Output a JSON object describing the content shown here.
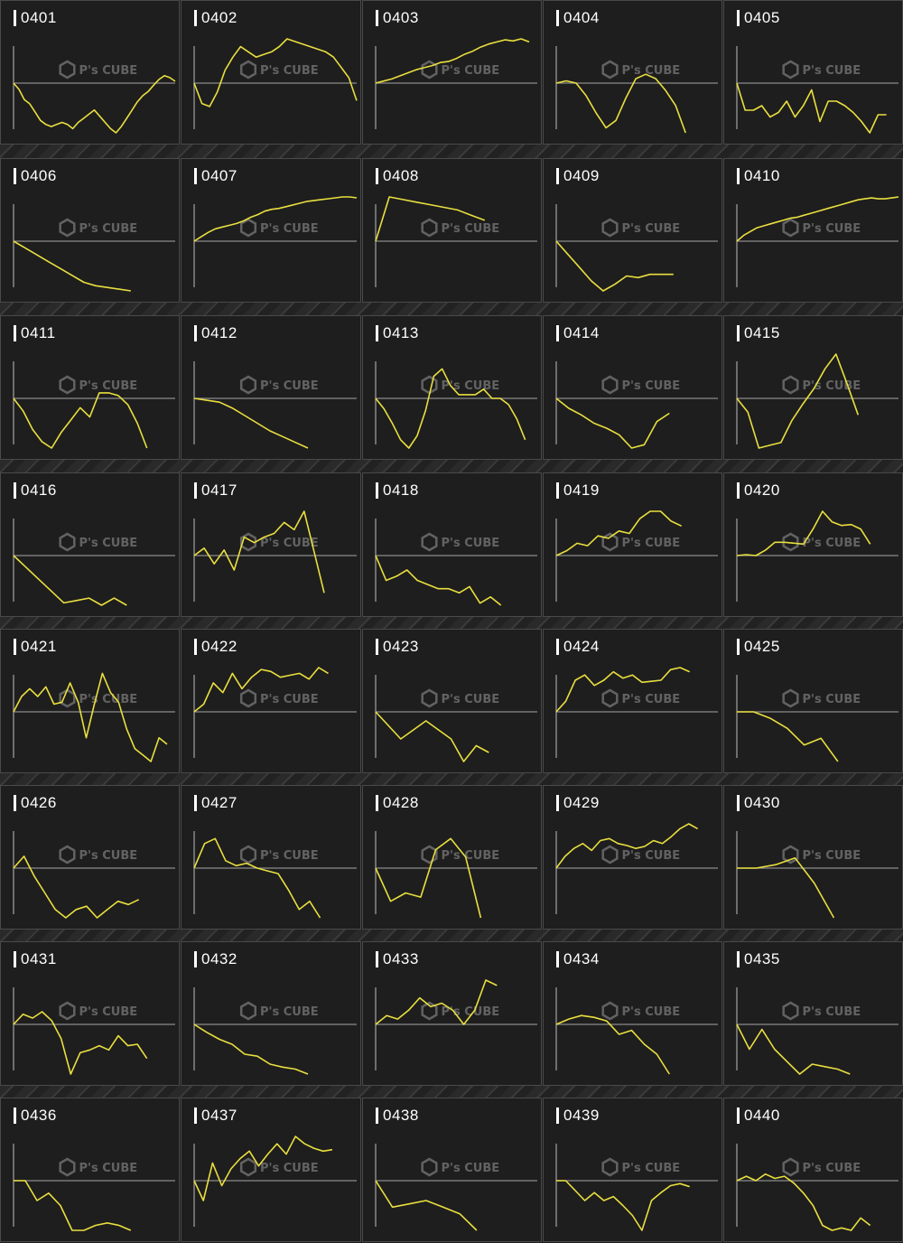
{
  "colors": {
    "background": "#1d1d1d",
    "panel": "#1e1e1e",
    "line": "#e9df3f",
    "baseline": "#8c8c8c",
    "label": "#ffffff"
  },
  "watermark": {
    "brand": "P's CUBE",
    "icon": "cube-logo-icon"
  },
  "chart_data": [
    {
      "type": "line",
      "label": "0401",
      "values": [
        0,
        -3,
        -8,
        -10,
        -14,
        -18,
        -20,
        -21,
        -20,
        -19,
        -20,
        -22,
        -19,
        -17,
        -15,
        -13,
        -16,
        -19,
        -22,
        -24,
        -21,
        -17,
        -13,
        -9,
        -6,
        -4,
        -1,
        2,
        4,
        3,
        1
      ]
    },
    {
      "type": "line",
      "label": "0402",
      "values": [
        0,
        -7,
        -8,
        -3,
        5,
        10,
        14,
        12,
        10,
        11,
        12,
        14,
        17,
        16,
        15,
        14,
        13,
        12,
        10,
        6,
        2,
        -6
      ]
    },
    {
      "type": "line",
      "label": "0403",
      "values": [
        0,
        2,
        4,
        7,
        10,
        13,
        15,
        17,
        20,
        21,
        24,
        28,
        31,
        35,
        38,
        40,
        42,
        41,
        43,
        40
      ]
    },
    {
      "type": "line",
      "label": "0404",
      "values": [
        0,
        1,
        0,
        -5,
        -12,
        -18,
        -15,
        -6,
        2,
        4,
        2,
        -3,
        -9,
        -20
      ]
    },
    {
      "type": "line",
      "label": "0405",
      "values": [
        0,
        -12,
        -12,
        -10,
        -15,
        -13,
        -8,
        -15,
        -10,
        -3,
        -17,
        -8,
        -8,
        -10,
        -13,
        -17,
        -22,
        -14,
        -14
      ]
    },
    {
      "type": "line",
      "label": "0406",
      "values": [
        0,
        -4,
        -8,
        -12,
        -16,
        -20,
        -24,
        -26,
        -27,
        -28,
        -29
      ]
    },
    {
      "type": "line",
      "label": "0407",
      "values": [
        0,
        5,
        10,
        14,
        16,
        18,
        20,
        23,
        27,
        30,
        34,
        36,
        37,
        39,
        41,
        43,
        45,
        46,
        47,
        48,
        49,
        50,
        50,
        49
      ]
    },
    {
      "type": "line",
      "label": "0408",
      "values": [
        0,
        17,
        16,
        15,
        14,
        13,
        12,
        10,
        8
      ]
    },
    {
      "type": "line",
      "label": "0409",
      "values": [
        0,
        -8,
        -16,
        -24,
        -30,
        -26,
        -21,
        -22,
        -20,
        -20,
        -20
      ]
    },
    {
      "type": "line",
      "label": "0410",
      "values": [
        0,
        6,
        10,
        14,
        16,
        18,
        20,
        22,
        24,
        25,
        27,
        29,
        31,
        33,
        35,
        37,
        39,
        41,
        43,
        44,
        45,
        44,
        44,
        45,
        46
      ]
    },
    {
      "type": "line",
      "label": "0411",
      "values": [
        0,
        -4,
        -10,
        -14,
        -16,
        -11,
        -7,
        -3,
        -6,
        2,
        2,
        1,
        -2,
        -8,
        -16
      ]
    },
    {
      "type": "line",
      "label": "0412",
      "values": [
        0,
        -1,
        -2,
        -5,
        -9,
        -13,
        -17,
        -20,
        -23,
        -26
      ]
    },
    {
      "type": "line",
      "label": "0413",
      "values": [
        0,
        -5,
        -12,
        -20,
        -24,
        -18,
        -6,
        12,
        16,
        7,
        2,
        2,
        2,
        5,
        0,
        0,
        -3,
        -10,
        -20
      ]
    },
    {
      "type": "line",
      "label": "0414",
      "values": [
        0,
        -6,
        -10,
        -15,
        -18,
        -22,
        -30,
        -28,
        -14,
        -9
      ]
    },
    {
      "type": "line",
      "label": "0415",
      "values": [
        0,
        -5,
        -18,
        -17,
        -16,
        -8,
        -2,
        4,
        12,
        18,
        6,
        -6
      ]
    },
    {
      "type": "line",
      "label": "0416",
      "values": [
        0,
        -5,
        -10,
        -15,
        -20,
        -19,
        -18,
        -21,
        -18,
        -21
      ]
    },
    {
      "type": "line",
      "label": "0417",
      "values": [
        0,
        4,
        -4,
        3,
        -7,
        10,
        7,
        10,
        12,
        18,
        14,
        24,
        2,
        -18
      ]
    },
    {
      "type": "line",
      "label": "0418",
      "values": [
        0,
        -12,
        -10,
        -7,
        -12,
        -14,
        -16,
        -16,
        -18,
        -15,
        -23,
        -20,
        -24
      ]
    },
    {
      "type": "line",
      "label": "0419",
      "values": [
        0,
        2,
        5,
        4,
        8,
        7,
        10,
        9,
        15,
        18,
        18,
        14,
        12
      ]
    },
    {
      "type": "line",
      "label": "0420",
      "values": [
        0,
        1,
        0,
        6,
        15,
        15,
        14,
        13,
        30,
        50,
        38,
        34,
        35,
        30,
        13
      ]
    },
    {
      "type": "line",
      "label": "0421",
      "values": [
        0,
        8,
        12,
        8,
        13,
        4,
        5,
        15,
        5,
        -12,
        4,
        20,
        10,
        5,
        -8,
        -17,
        -20,
        -23,
        -12,
        -15
      ]
    },
    {
      "type": "line",
      "label": "0422",
      "values": [
        0,
        4,
        15,
        10,
        20,
        12,
        18,
        22,
        21,
        18,
        19,
        20,
        17,
        23,
        20
      ]
    },
    {
      "type": "line",
      "label": "0423",
      "values": [
        0,
        -6,
        -12,
        -8,
        -4,
        -8,
        -12,
        -22,
        -15,
        -18
      ]
    },
    {
      "type": "line",
      "label": "0424",
      "values": [
        0,
        10,
        30,
        35,
        25,
        30,
        38,
        32,
        35,
        28,
        29,
        30,
        40,
        42,
        38
      ]
    },
    {
      "type": "line",
      "label": "0425",
      "values": [
        0,
        0,
        -2,
        -5,
        -10,
        -8,
        -15
      ]
    },
    {
      "type": "line",
      "label": "0426",
      "values": [
        0,
        8,
        -5,
        -15,
        -25,
        -30,
        -25,
        -23,
        -30,
        -25,
        -20,
        -22,
        -19
      ]
    },
    {
      "type": "line",
      "label": "0427",
      "values": [
        0,
        10,
        12,
        3,
        1,
        2,
        0,
        -1,
        -2,
        -8,
        -15,
        -12,
        -18
      ]
    },
    {
      "type": "line",
      "label": "0428",
      "values": [
        0,
        -8,
        -6,
        -7,
        5,
        8,
        3,
        -12
      ]
    },
    {
      "type": "line",
      "label": "0429",
      "values": [
        0,
        12,
        20,
        25,
        18,
        28,
        30,
        25,
        23,
        20,
        22,
        28,
        25,
        32,
        40,
        45,
        40
      ]
    },
    {
      "type": "line",
      "label": "0430",
      "values": [
        0,
        0,
        1,
        3,
        -4,
        -13
      ]
    },
    {
      "type": "line",
      "label": "0431",
      "values": [
        0,
        8,
        5,
        10,
        3,
        -10,
        -35,
        -20,
        -18,
        -15,
        -18,
        -8,
        -15,
        -14,
        -24
      ]
    },
    {
      "type": "line",
      "label": "0432",
      "values": [
        0,
        -8,
        -15,
        -20,
        -30,
        -32,
        -40,
        -43,
        -45,
        -50
      ]
    },
    {
      "type": "line",
      "label": "0433",
      "values": [
        0,
        5,
        3,
        8,
        15,
        10,
        12,
        8,
        0,
        8,
        25,
        22
      ]
    },
    {
      "type": "line",
      "label": "0434",
      "values": [
        0,
        3,
        5,
        4,
        2,
        -5,
        -3,
        -10,
        -15,
        -25
      ]
    },
    {
      "type": "line",
      "label": "0435",
      "values": [
        0,
        -10,
        -2,
        -10,
        -15,
        -20,
        -16,
        -17,
        -18,
        -20
      ]
    },
    {
      "type": "line",
      "label": "0436",
      "values": [
        0,
        0,
        -8,
        -5,
        -10,
        -20,
        -20,
        -18,
        -17,
        -18,
        -20
      ]
    },
    {
      "type": "line",
      "label": "0437",
      "values": [
        0,
        -12,
        12,
        -3,
        8,
        15,
        20,
        10,
        18,
        25,
        18,
        30,
        25,
        22,
        20,
        21
      ]
    },
    {
      "type": "line",
      "label": "0438",
      "values": [
        0,
        -8,
        -7,
        -6,
        -8,
        -10,
        -15
      ]
    },
    {
      "type": "line",
      "label": "0439",
      "values": [
        0,
        0,
        -10,
        -20,
        -12,
        -20,
        -16,
        -25,
        -35,
        -50,
        -20,
        -12,
        -5,
        -3,
        -6
      ]
    },
    {
      "type": "line",
      "label": "0440",
      "values": [
        0,
        2,
        0,
        3,
        1,
        2,
        -1,
        -5,
        -10,
        -18,
        -20,
        -19,
        -20,
        -15,
        -18
      ]
    }
  ]
}
